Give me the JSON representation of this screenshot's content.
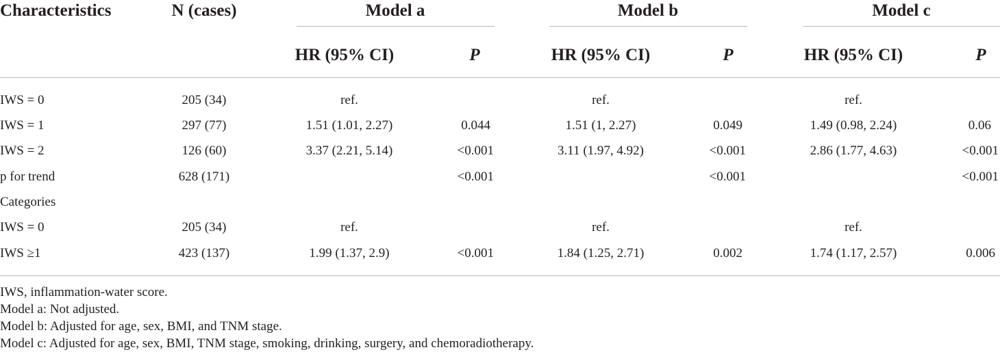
{
  "header": {
    "characteristics": "Characteristics",
    "n_cases": "N (cases)",
    "models": [
      "Model a",
      "Model b",
      "Model c"
    ],
    "hr_label": "HR (95% CI)",
    "p_label": "P"
  },
  "rows": [
    {
      "label": "IWS = 0",
      "n": "205 (34)",
      "a_hr": "ref.",
      "a_p": "",
      "b_hr": "ref.",
      "b_p": "",
      "c_hr": "ref.",
      "c_p": ""
    },
    {
      "label": "IWS = 1",
      "n": "297 (77)",
      "a_hr": "1.51 (1.01, 2.27)",
      "a_p": "0.044",
      "b_hr": "1.51 (1, 2.27)",
      "b_p": "0.049",
      "c_hr": "1.49 (0.98, 2.24)",
      "c_p": "0.06"
    },
    {
      "label": "IWS = 2",
      "n": "126 (60)",
      "a_hr": "3.37 (2.21, 5.14)",
      "a_p": "<0.001",
      "b_hr": "3.11 (1.97, 4.92)",
      "b_p": "<0.001",
      "c_hr": "2.86 (1.77, 4.63)",
      "c_p": "<0.001"
    },
    {
      "label": "p for trend",
      "n": "628 (171)",
      "a_hr": "",
      "a_p": "<0.001",
      "b_hr": "",
      "b_p": "<0.001",
      "c_hr": "",
      "c_p": "<0.001"
    },
    {
      "label": "Categories",
      "n": "",
      "a_hr": "",
      "a_p": "",
      "b_hr": "",
      "b_p": "",
      "c_hr": "",
      "c_p": ""
    },
    {
      "label": "IWS = 0",
      "n": "205 (34)",
      "a_hr": "ref.",
      "a_p": "",
      "b_hr": "ref.",
      "b_p": "",
      "c_hr": "ref.",
      "c_p": ""
    },
    {
      "label": "IWS ≥1",
      "n": "423 (137)",
      "a_hr": "1.99 (1.37, 2.9)",
      "a_p": "<0.001",
      "b_hr": "1.84 (1.25, 2.71)",
      "b_p": "0.002",
      "c_hr": "1.74 (1.17, 2.57)",
      "c_p": "0.006"
    }
  ],
  "footnotes": [
    "IWS, inflammation-water score.",
    "Model a: Not adjusted.",
    "Model b: Adjusted for age, sex, BMI, and TNM stage.",
    "Model c: Adjusted for age, sex, BMI, TNM stage, smoking, drinking, surgery, and chemoradiotherapy."
  ]
}
